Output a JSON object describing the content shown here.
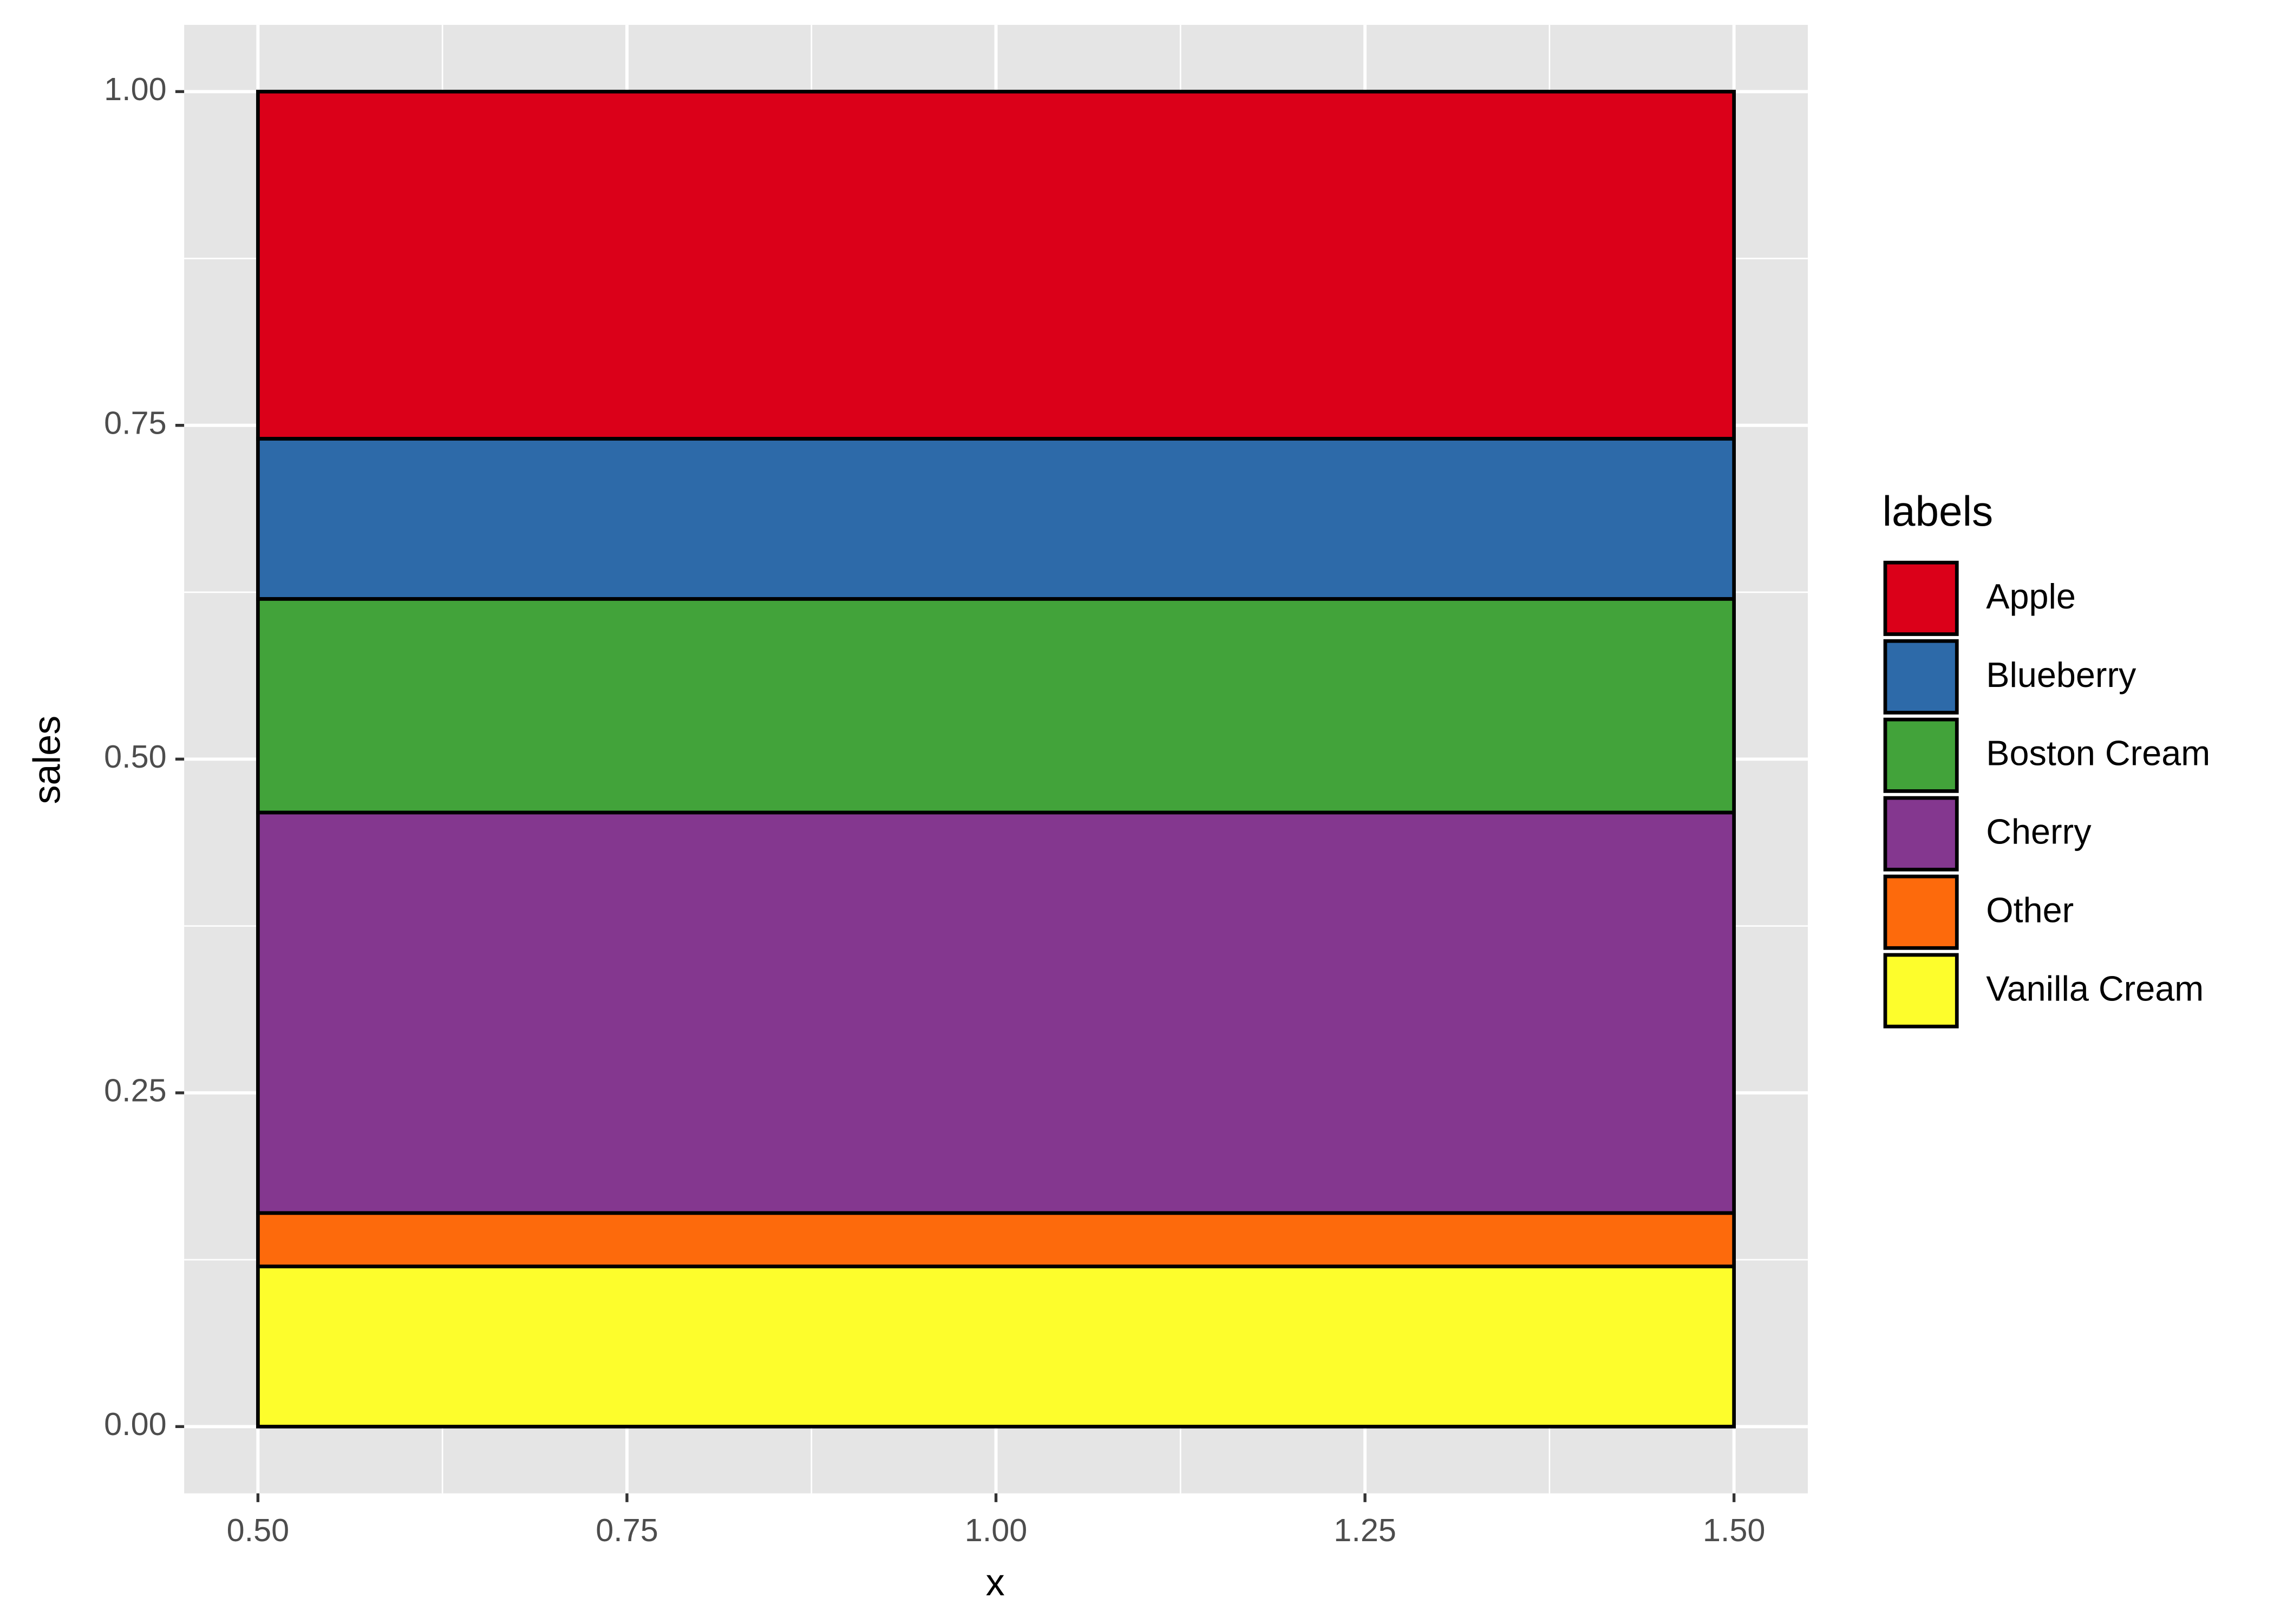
{
  "chart_data": {
    "type": "bar",
    "stacked": true,
    "x_label": "x",
    "y_label": "sales",
    "legend_title": "labels",
    "x": [
      1
    ],
    "bar_width": 1,
    "series": [
      {
        "name": "Apple",
        "color": "#db0019",
        "values": [
          0.26
        ]
      },
      {
        "name": "Blueberry",
        "color": "#2d6aa9",
        "values": [
          0.12
        ]
      },
      {
        "name": "Boston Cream",
        "color": "#42a33a",
        "values": [
          0.16
        ]
      },
      {
        "name": "Cherry",
        "color": "#84378f",
        "values": [
          0.3
        ]
      },
      {
        "name": "Other",
        "color": "#fd6a0c",
        "values": [
          0.04
        ]
      },
      {
        "name": "Vanilla Cream",
        "color": "#fdfd2c",
        "values": [
          0.12
        ]
      }
    ],
    "xlim": [
      0.45,
      1.55
    ],
    "ylim": [
      -0.05,
      1.05
    ],
    "xticks": [
      {
        "value": 0.5,
        "label": "0.50"
      },
      {
        "value": 0.75,
        "label": "0.75"
      },
      {
        "value": 1,
        "label": "1.00"
      },
      {
        "value": 1.25,
        "label": "1.25"
      },
      {
        "value": 1.5,
        "label": "1.50"
      }
    ],
    "yticks": [
      {
        "value": 0,
        "label": "0.00"
      },
      {
        "value": 0.25,
        "label": "0.25"
      },
      {
        "value": 0.5,
        "label": "0.50"
      },
      {
        "value": 0.75,
        "label": "0.75"
      },
      {
        "value": 1,
        "label": "1.00"
      }
    ],
    "x_minor_ticks": [
      0.625,
      0.875,
      1.125,
      1.375
    ],
    "y_minor_ticks": [
      0.125,
      0.375,
      0.625,
      0.875
    ],
    "grid": true,
    "legend": "right"
  }
}
